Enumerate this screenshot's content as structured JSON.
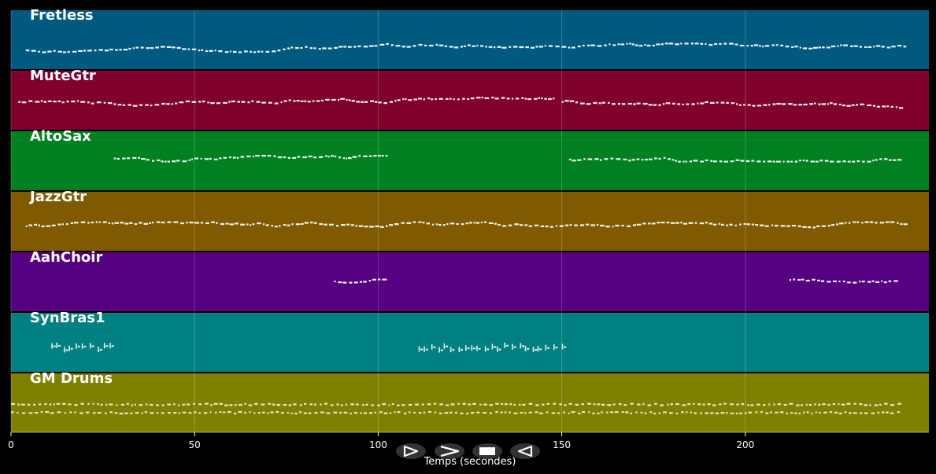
{
  "chart_data": {
    "type": "piano-roll",
    "xlabel": "Temps (secondes)",
    "xlim": [
      0,
      250
    ],
    "xticks": [
      0,
      50,
      100,
      150,
      200
    ],
    "grid": true,
    "tracks": [
      {
        "name": "Fretless",
        "color": "#005a80",
        "notes_segments": [
          [
            4,
            244
          ]
        ],
        "pitch_band": [
          0.55,
          0.8
        ],
        "style": "dense"
      },
      {
        "name": "MuteGtr",
        "color": "#80002d",
        "notes_segments": [
          [
            2,
            148
          ],
          [
            150,
            243
          ]
        ],
        "pitch_band": [
          0.35,
          0.65
        ],
        "style": "dense"
      },
      {
        "name": "AltoSax",
        "color": "#008020",
        "notes_segments": [
          [
            28,
            102
          ],
          [
            152,
            242
          ]
        ],
        "pitch_band": [
          0.4,
          0.5
        ],
        "style": "dense"
      },
      {
        "name": "JazzGtr",
        "color": "#805a00",
        "notes_segments": [
          [
            4,
            244
          ]
        ],
        "pitch_band": [
          0.5,
          0.62
        ],
        "style": "dense"
      },
      {
        "name": "AahChoir",
        "color": "#550080",
        "notes_segments": [
          [
            88,
            102
          ],
          [
            212,
            242
          ]
        ],
        "pitch_band": [
          0.42,
          0.5
        ],
        "style": "dense"
      },
      {
        "name": "SynBras1",
        "color": "#008080",
        "notes_segments": [
          [
            11,
            27
          ],
          [
            111,
            151
          ]
        ],
        "pitch_band": [
          0.5,
          0.58
        ],
        "style": "sparse"
      },
      {
        "name": "GM Drums",
        "color": "#808000",
        "notes_segments": [
          [
            0,
            242
          ]
        ],
        "pitch_band": [
          0.5,
          0.7
        ],
        "style": "drums"
      }
    ]
  },
  "controls": {
    "play_icon": "play-outline-icon",
    "forward_icon": "chevron-right-icon",
    "stop_icon": "stop-icon",
    "rewind_icon": "play-left-outline-icon"
  }
}
